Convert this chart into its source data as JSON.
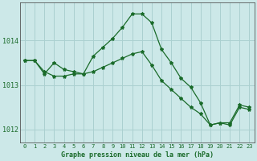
{
  "title": "Graphe pression niveau de la mer (hPa)",
  "background_color": "#cce8e8",
  "grid_color": "#aad0d0",
  "line_color": "#1a6b2a",
  "xlim": [
    -0.5,
    23.5
  ],
  "ylim": [
    1011.7,
    1014.85
  ],
  "yticks": [
    1012,
    1013,
    1014
  ],
  "xlabel_fontsize": 6.0,
  "series1_x": [
    0,
    1,
    2,
    3,
    4,
    5,
    6,
    7,
    8,
    9,
    10,
    11,
    12,
    13,
    14,
    15,
    16,
    17,
    18,
    19,
    20,
    21,
    22,
    23
  ],
  "series1_y": [
    1013.55,
    1013.55,
    1013.25,
    1013.5,
    1013.35,
    1013.3,
    1013.25,
    1013.65,
    1013.85,
    1014.05,
    1014.3,
    1014.6,
    1014.6,
    1014.4,
    1013.8,
    1013.5,
    1013.15,
    1012.95,
    1012.6,
    1012.1,
    1012.15,
    1012.15,
    1012.55,
    1012.5
  ],
  "series2_x": [
    0,
    1,
    2,
    3,
    4,
    5,
    6,
    7,
    8,
    9,
    10,
    11,
    12,
    13,
    14,
    15,
    16,
    17,
    18,
    19,
    20,
    21,
    22,
    23
  ],
  "series2_y": [
    1013.55,
    1013.55,
    1013.3,
    1013.2,
    1013.2,
    1013.25,
    1013.25,
    1013.3,
    1013.4,
    1013.5,
    1013.6,
    1013.7,
    1013.75,
    1013.45,
    1013.1,
    1012.9,
    1012.7,
    1012.5,
    1012.35,
    1012.1,
    1012.15,
    1012.1,
    1012.5,
    1012.45
  ]
}
